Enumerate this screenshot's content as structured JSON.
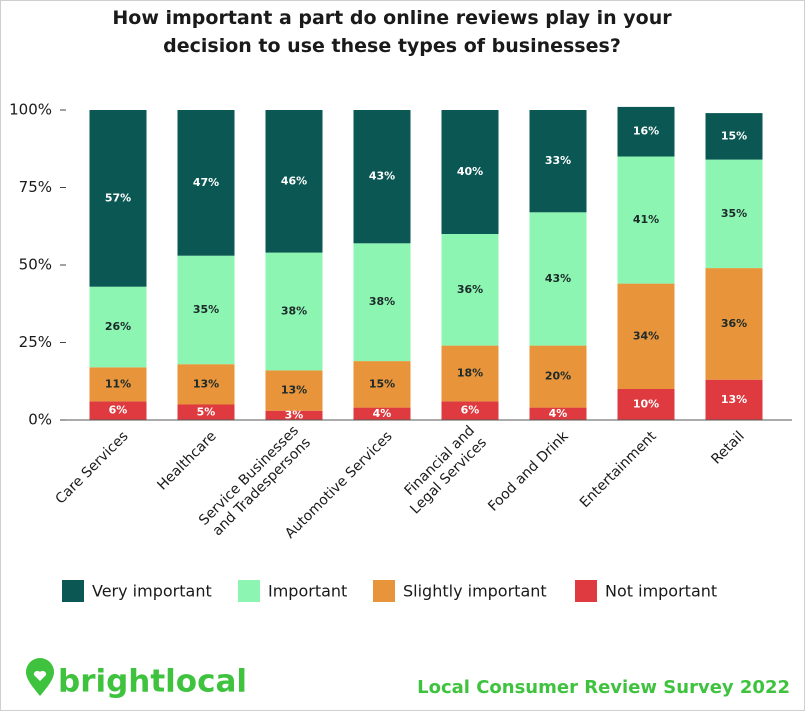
{
  "chart_data": {
    "type": "stacked_bar",
    "title": "How important a part do online reviews play in your\ndecision to use these types of businesses?",
    "categories": [
      "Care Services",
      "Healthcare",
      "Service Businesses\nand Tradespersons",
      "Automotive Services",
      "Financial and\nLegal Services",
      "Food and Drink",
      "Entertainment",
      "Retail"
    ],
    "series": [
      {
        "name": "Very important",
        "color": "#0b5753",
        "label_color": "#ffffff",
        "values": [
          57,
          47,
          46,
          43,
          40,
          33,
          16,
          15
        ],
        "value_labels": [
          "57%",
          "47%",
          "46%",
          "43%",
          "40%",
          "33%",
          "16%",
          "15%"
        ]
      },
      {
        "name": "Important",
        "color": "#8cf5b1",
        "label_color": "#1c2a2a",
        "values": [
          26,
          35,
          38,
          38,
          36,
          43,
          41,
          35
        ],
        "value_labels": [
          "26%",
          "35%",
          "38%",
          "38%",
          "36%",
          "43%",
          "41%",
          "35%"
        ]
      },
      {
        "name": "Slightly important",
        "color": "#e8943a",
        "label_color": "#1c2a2a",
        "values": [
          11,
          13,
          13,
          15,
          18,
          20,
          34,
          36
        ],
        "value_labels": [
          "11%",
          "13%",
          "13%",
          "15%",
          "18%",
          "20%",
          "34%",
          "36%"
        ]
      },
      {
        "name": "Not important",
        "color": "#de3a3f",
        "label_color": "#ffffff",
        "values": [
          6,
          5,
          3,
          4,
          6,
          4,
          10,
          13
        ],
        "value_labels": [
          "6%",
          "5%",
          "3%",
          "4%",
          "6%",
          "4%",
          "10%",
          "13%"
        ]
      }
    ],
    "ylim": [
      0,
      100
    ],
    "yticks": [
      {
        "value": 0,
        "label": "0%"
      },
      {
        "value": 25,
        "label": "25%"
      },
      {
        "value": 50,
        "label": "50%"
      },
      {
        "value": 75,
        "label": "75%"
      },
      {
        "value": 100,
        "label": "100%"
      }
    ],
    "grid": false,
    "legend": "bottom"
  },
  "footer": {
    "brand": "brightlocal",
    "survey": "Local Consumer Review Survey 2022"
  }
}
